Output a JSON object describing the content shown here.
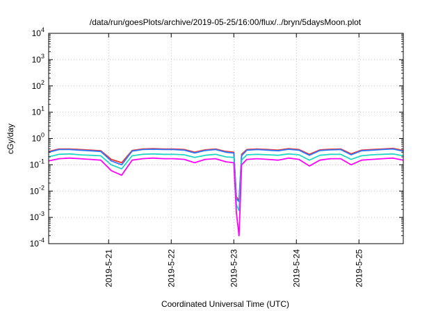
{
  "chart_data": {
    "type": "line",
    "title": "/data/run/goesPlots/archive/2019-05-25/16:00/flux/../bryn/5daysMoon.plot",
    "xlabel": "Coordinated Universal Time (UTC)",
    "ylabel": "cGy/day",
    "y_scale": "log",
    "ylim": [
      0.0001,
      10000
    ],
    "y_ticks": [
      {
        "value": 0.0001,
        "base": "10",
        "exp": "-4"
      },
      {
        "value": 0.001,
        "base": "10",
        "exp": "-3"
      },
      {
        "value": 0.01,
        "base": "10",
        "exp": "-2"
      },
      {
        "value": 0.1,
        "base": "10",
        "exp": "-1"
      },
      {
        "value": 1,
        "base": "10",
        "exp": "0"
      },
      {
        "value": 10,
        "base": "10",
        "exp": "1"
      },
      {
        "value": 100,
        "base": "10",
        "exp": "2"
      },
      {
        "value": 1000,
        "base": "10",
        "exp": "3"
      },
      {
        "value": 10000,
        "base": "10",
        "exp": "4"
      }
    ],
    "xlim": [
      "2019-05-20T01:00",
      "2019-05-25T17:00"
    ],
    "x_ticks": [
      {
        "value": "2019-05-21",
        "label": "2019-5-21"
      },
      {
        "value": "2019-05-22",
        "label": "2019-5-22"
      },
      {
        "value": "2019-05-23",
        "label": "2019-5-23"
      },
      {
        "value": "2019-05-24",
        "label": "2019-5-24"
      },
      {
        "value": "2019-05-25",
        "label": "2019-5-25"
      }
    ],
    "grid": true,
    "x": [
      "2019-05-20T01:00",
      "2019-05-20T05:00",
      "2019-05-20T09:00",
      "2019-05-20T13:00",
      "2019-05-20T17:00",
      "2019-05-20T21:00",
      "2019-05-21T01:00",
      "2019-05-21T05:00",
      "2019-05-21T09:00",
      "2019-05-21T13:00",
      "2019-05-21T17:00",
      "2019-05-21T21:00",
      "2019-05-22T01:00",
      "2019-05-22T05:00",
      "2019-05-22T09:00",
      "2019-05-22T13:00",
      "2019-05-22T17:00",
      "2019-05-22T21:00",
      "2019-05-23T00:00",
      "2019-05-23T01:00",
      "2019-05-23T02:00",
      "2019-05-23T03:00",
      "2019-05-23T05:00",
      "2019-05-23T09:00",
      "2019-05-23T13:00",
      "2019-05-23T17:00",
      "2019-05-23T21:00",
      "2019-05-24T01:00",
      "2019-05-24T05:00",
      "2019-05-24T09:00",
      "2019-05-24T13:00",
      "2019-05-24T17:00",
      "2019-05-24T21:00",
      "2019-05-25T01:00",
      "2019-05-25T05:00",
      "2019-05-25T09:00",
      "2019-05-25T13:00",
      "2019-05-25T17:00"
    ],
    "series": [
      {
        "color": "#ff2a2a",
        "values": [
          0.32,
          0.4,
          0.4,
          0.38,
          0.36,
          0.34,
          0.16,
          0.12,
          0.35,
          0.4,
          0.41,
          0.4,
          0.4,
          0.38,
          0.3,
          0.37,
          0.4,
          0.32,
          0.3,
          0.006,
          0.0045,
          0.25,
          0.38,
          0.4,
          0.38,
          0.36,
          0.41,
          0.38,
          0.25,
          0.37,
          0.39,
          0.4,
          0.26,
          0.36,
          0.38,
          0.4,
          0.42,
          0.35
        ]
      },
      {
        "color": "#2a7bff",
        "values": [
          0.3,
          0.38,
          0.38,
          0.36,
          0.34,
          0.32,
          0.14,
          0.1,
          0.33,
          0.38,
          0.39,
          0.38,
          0.38,
          0.36,
          0.28,
          0.35,
          0.38,
          0.3,
          0.28,
          0.005,
          0.004,
          0.22,
          0.36,
          0.38,
          0.36,
          0.34,
          0.39,
          0.36,
          0.23,
          0.35,
          0.37,
          0.38,
          0.24,
          0.34,
          0.36,
          0.38,
          0.4,
          0.33
        ]
      },
      {
        "color": "#21d6c6",
        "values": [
          0.2,
          0.25,
          0.26,
          0.24,
          0.23,
          0.22,
          0.1,
          0.07,
          0.22,
          0.25,
          0.26,
          0.25,
          0.25,
          0.24,
          0.19,
          0.23,
          0.25,
          0.2,
          0.19,
          0.003,
          0.0018,
          0.15,
          0.24,
          0.25,
          0.24,
          0.23,
          0.26,
          0.24,
          0.15,
          0.23,
          0.25,
          0.25,
          0.16,
          0.22,
          0.24,
          0.25,
          0.26,
          0.22
        ]
      },
      {
        "color": "#ff00ff",
        "values": [
          0.14,
          0.17,
          0.18,
          0.17,
          0.16,
          0.15,
          0.06,
          0.04,
          0.15,
          0.17,
          0.18,
          0.17,
          0.17,
          0.16,
          0.12,
          0.16,
          0.17,
          0.13,
          0.12,
          0.0015,
          0.0002,
          0.1,
          0.16,
          0.17,
          0.16,
          0.15,
          0.18,
          0.16,
          0.09,
          0.15,
          0.17,
          0.17,
          0.1,
          0.15,
          0.16,
          0.17,
          0.18,
          0.15
        ]
      }
    ]
  }
}
